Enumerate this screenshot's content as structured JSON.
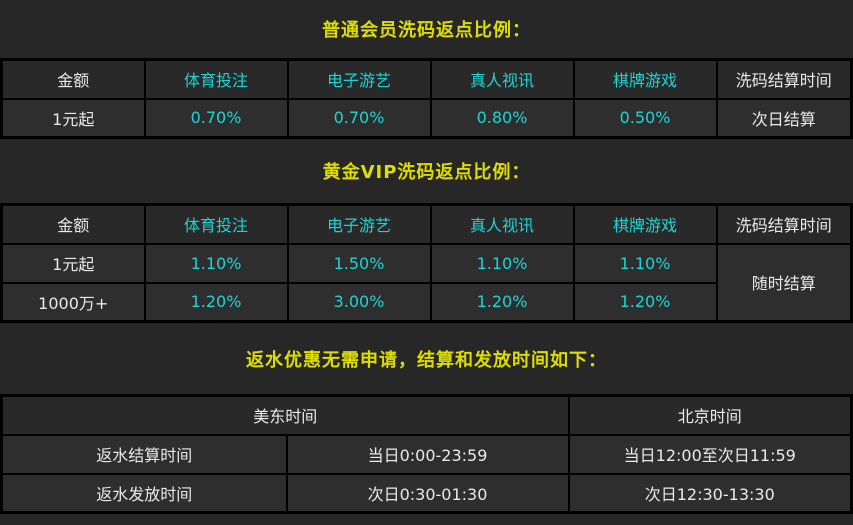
{
  "theme": {
    "page_bg": "#272727",
    "cell_bg": "#2e2e2e",
    "header_bg": "#292929",
    "border": "#000000",
    "title_yellow": "#dddd00",
    "accent_cyan": "#1ed4d2",
    "text_white": "#e9e9e9"
  },
  "sections": [
    {
      "title": "普通会员洗码返点比例：",
      "table": {
        "headers": [
          "金额",
          "体育投注",
          "电子游艺",
          "真人视讯",
          "棋牌游戏",
          "洗码结算时间"
        ],
        "rows": [
          [
            "1元起",
            "0.70%",
            "0.70%",
            "0.80%",
            "0.50%",
            "次日结算"
          ]
        ]
      }
    },
    {
      "title": "黄金VIP洗码返点比例：",
      "table": {
        "headers": [
          "金额",
          "体育投注",
          "电子游艺",
          "真人视讯",
          "棋牌游戏",
          "洗码结算时间"
        ],
        "rows": [
          [
            "1元起",
            "1.10%",
            "1.50%",
            "1.10%",
            "1.10%"
          ],
          [
            "1000万+",
            "1.20%",
            "3.00%",
            "1.20%",
            "1.20%"
          ]
        ],
        "merged_settlement": "随时结算"
      }
    },
    {
      "title": "返水优惠无需申请，结算和发放时间如下：",
      "table": {
        "headers": [
          "美东时间",
          "北京时间"
        ],
        "rows": [
          [
            "返水结算时间",
            "当日0:00-23:59",
            "当日12:00至次日11:59"
          ],
          [
            "返水发放时间",
            "次日0:30-01:30",
            "次日12:30-13:30"
          ]
        ]
      }
    }
  ]
}
